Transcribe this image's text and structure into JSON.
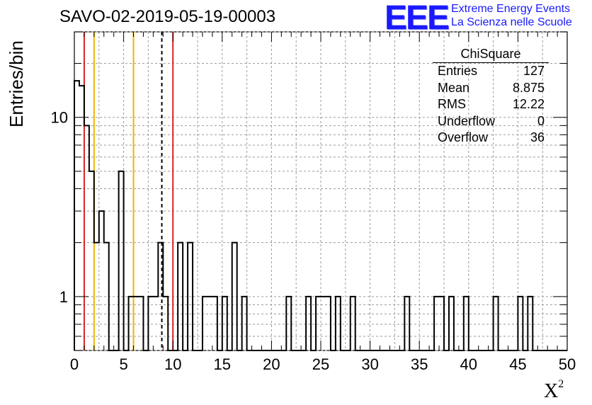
{
  "header": {
    "title": "SAVO-02-2019-05-19-00003",
    "logo_text": "EEE",
    "logo_line1": "Extreme Energy Events",
    "logo_line2": "La Scienza nelle Scuole"
  },
  "stats_box": {
    "title": "ChiSquare",
    "rows": [
      {
        "label": "Entries",
        "value": "127"
      },
      {
        "label": "Mean",
        "value": "8.875"
      },
      {
        "label": "RMS",
        "value": "12.22"
      },
      {
        "label": "Underflow",
        "value": "0"
      },
      {
        "label": "Overflow",
        "value": "36"
      }
    ]
  },
  "chart_data": {
    "type": "bar",
    "histogram": true,
    "xlabel": "X",
    "xlabel_sup": "2",
    "ylabel": "Entries/bin",
    "xlim": [
      0,
      50
    ],
    "ylim": [
      0.5,
      30
    ],
    "y_scale": "log",
    "grid": true,
    "bin_width": 0.5,
    "x_ticks": [
      "0",
      "5",
      "10",
      "15",
      "20",
      "25",
      "30",
      "35",
      "40",
      "45",
      "50"
    ],
    "y_ticks": [
      {
        "value": 1,
        "label": "1"
      },
      {
        "value": 10,
        "label": "10"
      }
    ],
    "bins": [
      {
        "x": 0.0,
        "y": 16
      },
      {
        "x": 0.5,
        "y": 15
      },
      {
        "x": 1.0,
        "y": 9
      },
      {
        "x": 1.5,
        "y": 5
      },
      {
        "x": 2.0,
        "y": 2
      },
      {
        "x": 2.5,
        "y": 3
      },
      {
        "x": 3.0,
        "y": 2
      },
      {
        "x": 4.5,
        "y": 5
      },
      {
        "x": 5.5,
        "y": 1
      },
      {
        "x": 6.0,
        "y": 1
      },
      {
        "x": 6.5,
        "y": 1
      },
      {
        "x": 7.5,
        "y": 1
      },
      {
        "x": 8.0,
        "y": 1
      },
      {
        "x": 8.5,
        "y": 2
      },
      {
        "x": 9.0,
        "y": 1
      },
      {
        "x": 10.5,
        "y": 2
      },
      {
        "x": 11.5,
        "y": 2
      },
      {
        "x": 13.0,
        "y": 1
      },
      {
        "x": 13.5,
        "y": 1
      },
      {
        "x": 14.0,
        "y": 1
      },
      {
        "x": 15.0,
        "y": 1
      },
      {
        "x": 16.0,
        "y": 2
      },
      {
        "x": 17.0,
        "y": 1
      },
      {
        "x": 21.5,
        "y": 1
      },
      {
        "x": 23.5,
        "y": 1
      },
      {
        "x": 24.5,
        "y": 1
      },
      {
        "x": 25.0,
        "y": 1
      },
      {
        "x": 25.5,
        "y": 1
      },
      {
        "x": 26.5,
        "y": 1
      },
      {
        "x": 28.0,
        "y": 1
      },
      {
        "x": 33.5,
        "y": 1
      },
      {
        "x": 36.5,
        "y": 1
      },
      {
        "x": 37.0,
        "y": 1
      },
      {
        "x": 38.0,
        "y": 1
      },
      {
        "x": 39.5,
        "y": 1
      },
      {
        "x": 42.5,
        "y": 1
      },
      {
        "x": 45.0,
        "y": 1
      },
      {
        "x": 46.0,
        "y": 1
      }
    ],
    "vertical_lines": [
      {
        "x": 1,
        "color": "#dd2222",
        "style": "solid"
      },
      {
        "x": 2,
        "color": "#f0b400",
        "style": "solid"
      },
      {
        "x": 6,
        "color": "#f0b400",
        "style": "solid"
      },
      {
        "x": 8.875,
        "color": "#000000",
        "style": "dashed"
      },
      {
        "x": 10,
        "color": "#dd2222",
        "style": "solid"
      }
    ]
  }
}
